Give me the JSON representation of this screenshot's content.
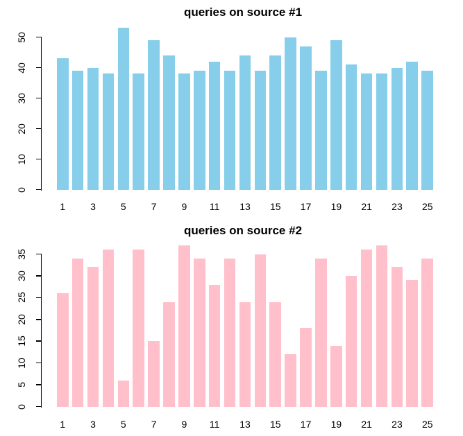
{
  "background_color": "#ffffff",
  "chart_data": [
    {
      "type": "bar",
      "title": "queries on source #1",
      "categories": [
        1,
        2,
        3,
        4,
        5,
        6,
        7,
        8,
        9,
        10,
        11,
        12,
        13,
        14,
        15,
        16,
        17,
        18,
        19,
        20,
        21,
        22,
        23,
        24,
        25
      ],
      "values": [
        43,
        39,
        40,
        38,
        53,
        38,
        49,
        44,
        38,
        39,
        42,
        39,
        44,
        39,
        44,
        50,
        47,
        39,
        49,
        41,
        38,
        38,
        40,
        42,
        39
      ],
      "bar_color": "#87CEEB",
      "xlabel": "",
      "ylabel": "",
      "ylim": [
        0,
        50
      ],
      "yticks": [
        0,
        10,
        20,
        30,
        40,
        50
      ],
      "xtick_labels": [
        "1",
        "3",
        "5",
        "7",
        "9",
        "11",
        "13",
        "15",
        "17",
        "19",
        "21",
        "23",
        "25"
      ],
      "grid": false,
      "legend": "none"
    },
    {
      "type": "bar",
      "title": "queries on source #2",
      "categories": [
        1,
        2,
        3,
        4,
        5,
        6,
        7,
        8,
        9,
        10,
        11,
        12,
        13,
        14,
        15,
        16,
        17,
        18,
        19,
        20,
        21,
        22,
        23,
        24,
        25
      ],
      "values": [
        26,
        34,
        32,
        36,
        6,
        36,
        15,
        24,
        37,
        34,
        28,
        34,
        24,
        35,
        24,
        12,
        18,
        34,
        14,
        30,
        36,
        37,
        32,
        29,
        34
      ],
      "bar_color": "#FFC0CB",
      "xlabel": "",
      "ylabel": "",
      "ylim": [
        0,
        35
      ],
      "yticks": [
        0,
        5,
        10,
        15,
        20,
        25,
        30,
        35
      ],
      "xtick_labels": [
        "1",
        "3",
        "5",
        "7",
        "9",
        "11",
        "13",
        "15",
        "17",
        "19",
        "21",
        "23",
        "25"
      ],
      "grid": false,
      "legend": "none"
    }
  ]
}
